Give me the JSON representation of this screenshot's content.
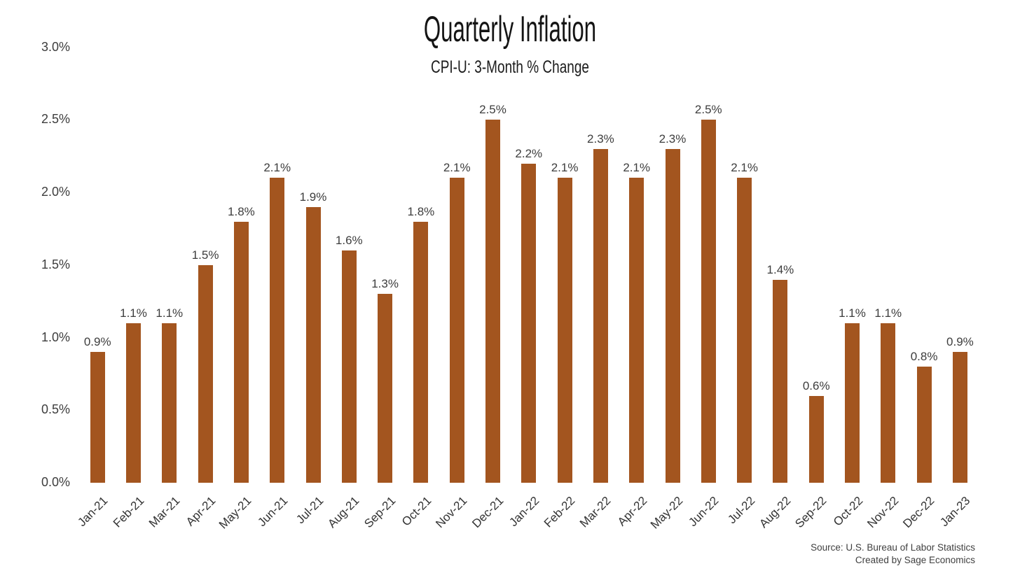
{
  "header": {
    "title": "Quarterly Inflation",
    "subtitle": "CPI-U: 3-Month % Change"
  },
  "footer": {
    "source_line1": "Source: U.S. Bureau of Labor Statistics",
    "source_line2": "Created by Sage Economics"
  },
  "colors": {
    "bar": "#A3551F",
    "value_label": "#3d3d3d",
    "axis_label": "#333333",
    "title": "#141414",
    "background": "#ffffff"
  },
  "chart_data": {
    "type": "bar",
    "title": "Quarterly Inflation",
    "subtitle": "CPI-U: 3-Month % Change",
    "categories": [
      "Jan-21",
      "Feb-21",
      "Mar-21",
      "Apr-21",
      "May-21",
      "Jun-21",
      "Jul-21",
      "Aug-21",
      "Sep-21",
      "Oct-21",
      "Nov-21",
      "Dec-21",
      "Jan-22",
      "Feb-22",
      "Mar-22",
      "Apr-22",
      "May-22",
      "Jun-22",
      "Jul-22",
      "Aug-22",
      "Sep-22",
      "Oct-22",
      "Nov-22",
      "Dec-22",
      "Jan-23"
    ],
    "values": [
      0.9,
      1.1,
      1.1,
      1.5,
      1.8,
      2.1,
      1.9,
      1.6,
      1.3,
      1.8,
      2.1,
      2.5,
      2.2,
      2.1,
      2.3,
      2.1,
      2.3,
      2.5,
      2.1,
      1.4,
      0.6,
      1.1,
      1.1,
      0.8,
      0.9
    ],
    "value_labels": [
      "0.9%",
      "1.1%",
      "1.1%",
      "1.5%",
      "1.8%",
      "2.1%",
      "1.9%",
      "1.6%",
      "1.3%",
      "1.8%",
      "2.1%",
      "2.5%",
      "2.2%",
      "2.1%",
      "2.3%",
      "2.1%",
      "2.3%",
      "2.5%",
      "2.1%",
      "1.4%",
      "0.6%",
      "1.1%",
      "1.1%",
      "0.8%",
      "0.9%"
    ],
    "y_ticks": [
      {
        "value": 0.0,
        "label": "0.0%"
      },
      {
        "value": 0.5,
        "label": "0.5%"
      },
      {
        "value": 1.0,
        "label": "1.0%"
      },
      {
        "value": 1.5,
        "label": "1.5%"
      },
      {
        "value": 2.0,
        "label": "2.0%"
      },
      {
        "value": 2.5,
        "label": "2.5%"
      },
      {
        "value": 3.0,
        "label": "3.0%"
      }
    ],
    "ylim": [
      0.0,
      3.0
    ],
    "xlabel": "",
    "ylabel": "",
    "grid": false,
    "legend": false,
    "bar_color": "#A3551F",
    "source": "Source: U.S. Bureau of Labor Statistics",
    "credit": "Created by Sage Economics"
  }
}
